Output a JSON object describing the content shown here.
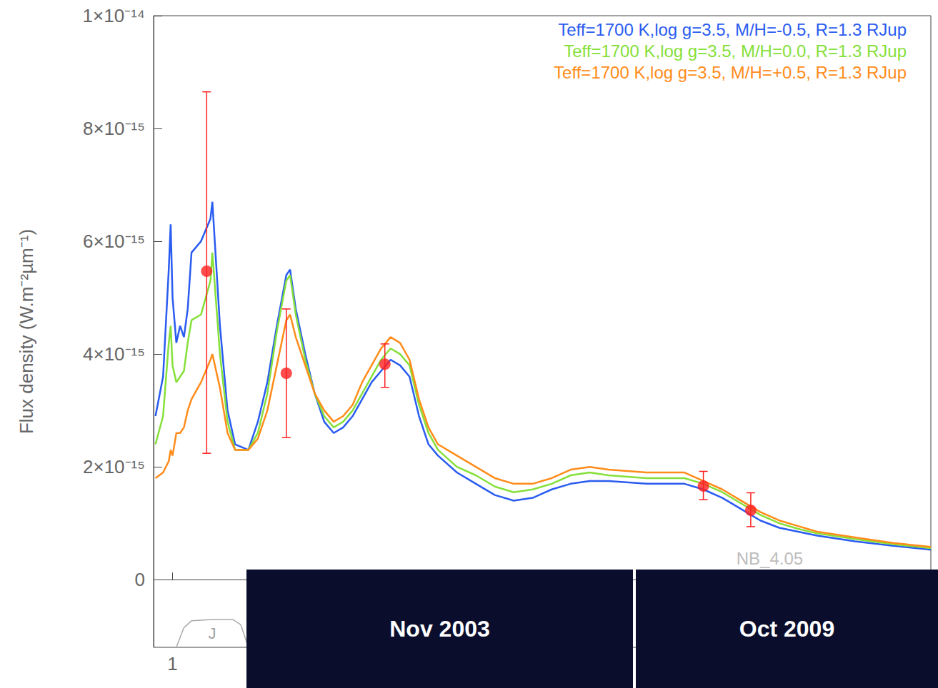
{
  "chart_data": {
    "type": "line",
    "y_label": "Flux density (W.m⁻²µm⁻¹)",
    "xlim": [
      0.9,
      5.0
    ],
    "xticks": [
      1
    ],
    "ylim": [
      -1.2e-15,
      1e-14
    ],
    "yticks": [
      0,
      {
        "value": 2e-15,
        "label": "2×10⁻¹⁵"
      },
      {
        "value": 4e-15,
        "label": "4×10⁻¹⁵"
      },
      {
        "value": 6e-15,
        "label": "6×10⁻¹⁵"
      },
      {
        "value": 8e-15,
        "label": "8×10⁻¹⁵"
      },
      {
        "value": 1e-14,
        "label": "1×10⁻¹⁴"
      }
    ],
    "grid": false,
    "legend": "top-right",
    "x": [
      0.91,
      0.95,
      0.98,
      0.99,
      1.0,
      1.02,
      1.04,
      1.06,
      1.08,
      1.1,
      1.15,
      1.2,
      1.21,
      1.25,
      1.29,
      1.33,
      1.4,
      1.45,
      1.5,
      1.55,
      1.6,
      1.62,
      1.65,
      1.7,
      1.75,
      1.8,
      1.85,
      1.9,
      1.95,
      2.0,
      2.05,
      2.1,
      2.15,
      2.2,
      2.25,
      2.3,
      2.35,
      2.4,
      2.5,
      2.6,
      2.7,
      2.8,
      2.9,
      3.0,
      3.1,
      3.2,
      3.3,
      3.5,
      3.7,
      3.8,
      3.9,
      4.0,
      4.1,
      4.2,
      4.3,
      4.4,
      4.6,
      4.8,
      5.0
    ],
    "series": [
      {
        "name": "Teff=1700 K,log g=3.5, M/H=-0.5, R=1.3 RJup",
        "color": "#2a5cf0",
        "values": [
          2.9e-15,
          3.6e-15,
          5.5e-15,
          6.3e-15,
          5e-15,
          4.2e-15,
          4.5e-15,
          4.3e-15,
          4.8e-15,
          5.8e-15,
          6e-15,
          6.4e-15,
          6.7e-15,
          4.5e-15,
          3e-15,
          2.4e-15,
          2.3e-15,
          2.8e-15,
          3.5e-15,
          4.5e-15,
          5.4e-15,
          5.5e-15,
          4.8e-15,
          4e-15,
          3.3e-15,
          2.8e-15,
          2.6e-15,
          2.7e-15,
          2.9e-15,
          3.2e-15,
          3.5e-15,
          3.7e-15,
          3.9e-15,
          3.8e-15,
          3.6e-15,
          2.9e-15,
          2.4e-15,
          2.2e-15,
          1.9e-15,
          1.7e-15,
          1.5e-15,
          1.4e-15,
          1.45e-15,
          1.6e-15,
          1.7e-15,
          1.75e-15,
          1.75e-15,
          1.7e-15,
          1.7e-15,
          1.6e-15,
          1.45e-15,
          1.25e-15,
          1.05e-15,
          9.2e-16,
          8.5e-16,
          7.8e-16,
          6.8e-16,
          6e-16,
          5.3e-16
        ]
      },
      {
        "name": "Teff=1700 K,log g=3.5, M/H=0.0, R=1.3 RJup",
        "color": "#86e03a",
        "values": [
          2.4e-15,
          2.9e-15,
          4.2e-15,
          4.5e-15,
          3.8e-15,
          3.5e-15,
          3.6e-15,
          3.7e-15,
          4.2e-15,
          4.6e-15,
          4.7e-15,
          5.3e-15,
          5.8e-15,
          4e-15,
          2.8e-15,
          2.3e-15,
          2.3e-15,
          2.6e-15,
          3.3e-15,
          4.4e-15,
          5.3e-15,
          5.4e-15,
          4.7e-15,
          3.9e-15,
          3.3e-15,
          2.9e-15,
          2.7e-15,
          2.8e-15,
          3e-15,
          3.3e-15,
          3.6e-15,
          3.9e-15,
          4.1e-15,
          4e-15,
          3.8e-15,
          3.1e-15,
          2.6e-15,
          2.3e-15,
          2e-15,
          1.85e-15,
          1.65e-15,
          1.55e-15,
          1.6e-15,
          1.7e-15,
          1.85e-15,
          1.9e-15,
          1.85e-15,
          1.8e-15,
          1.8e-15,
          1.7e-15,
          1.55e-15,
          1.35e-15,
          1.15e-15,
          1e-15,
          9e-16,
          8.2e-16,
          7.2e-16,
          6.3e-16,
          5.6e-16
        ]
      },
      {
        "name": "Teff=1700 K,log g=3.5, M/H=+0.5, R=1.3 RJup",
        "color": "#ff8c1a",
        "values": [
          1.8e-15,
          1.9e-15,
          2.1e-15,
          2.3e-15,
          2.2e-15,
          2.6e-15,
          2.6e-15,
          2.7e-15,
          3e-15,
          3.2e-15,
          3.5e-15,
          3.9e-15,
          4e-15,
          3.4e-15,
          2.6e-15,
          2.3e-15,
          2.3e-15,
          2.5e-15,
          3e-15,
          3.8e-15,
          4.6e-15,
          4.7e-15,
          4.3e-15,
          3.8e-15,
          3.3e-15,
          3e-15,
          2.8e-15,
          2.9e-15,
          3.1e-15,
          3.5e-15,
          3.8e-15,
          4.1e-15,
          4.3e-15,
          4.2e-15,
          3.9e-15,
          3.2e-15,
          2.7e-15,
          2.4e-15,
          2.2e-15,
          2e-15,
          1.8e-15,
          1.7e-15,
          1.7e-15,
          1.8e-15,
          1.95e-15,
          2e-15,
          1.95e-15,
          1.9e-15,
          1.9e-15,
          1.75e-15,
          1.6e-15,
          1.4e-15,
          1.2e-15,
          1.05e-15,
          9.5e-16,
          8.5e-16,
          7.5e-16,
          6.5e-16,
          5.8e-16
        ]
      }
    ],
    "points": {
      "type": "scatter",
      "color": "#ff1f1f",
      "marker": "circle",
      "x": [
        1.18,
        1.6,
        2.12,
        3.8,
        4.05
      ],
      "values": [
        5.47e-15,
        3.66e-15,
        3.82e-15,
        1.66e-15,
        1.23e-15
      ],
      "error_low": [
        2.24e-15,
        2.52e-15,
        3.41e-15,
        1.42e-15,
        9.4e-16
      ],
      "error_high": [
        8.65e-15,
        4.8e-15,
        4.18e-15,
        1.92e-15,
        1.54e-15
      ]
    },
    "filter_curve": {
      "label": "J",
      "color": "#aaaaaa",
      "x": [
        1.02,
        1.06,
        1.1,
        1.2,
        1.32,
        1.36,
        1.4
      ],
      "values": [
        -1.2e-15,
        -8.5e-16,
        -7.3e-16,
        -7.1e-16,
        -7.1e-16,
        -8e-16,
        -1.2e-15
      ]
    },
    "annotations": [
      {
        "text": "NB_4.05",
        "x": 4.15,
        "y": 3.7e-16
      }
    ],
    "panels": [
      "Nov 2003",
      "Oct 2009"
    ]
  }
}
